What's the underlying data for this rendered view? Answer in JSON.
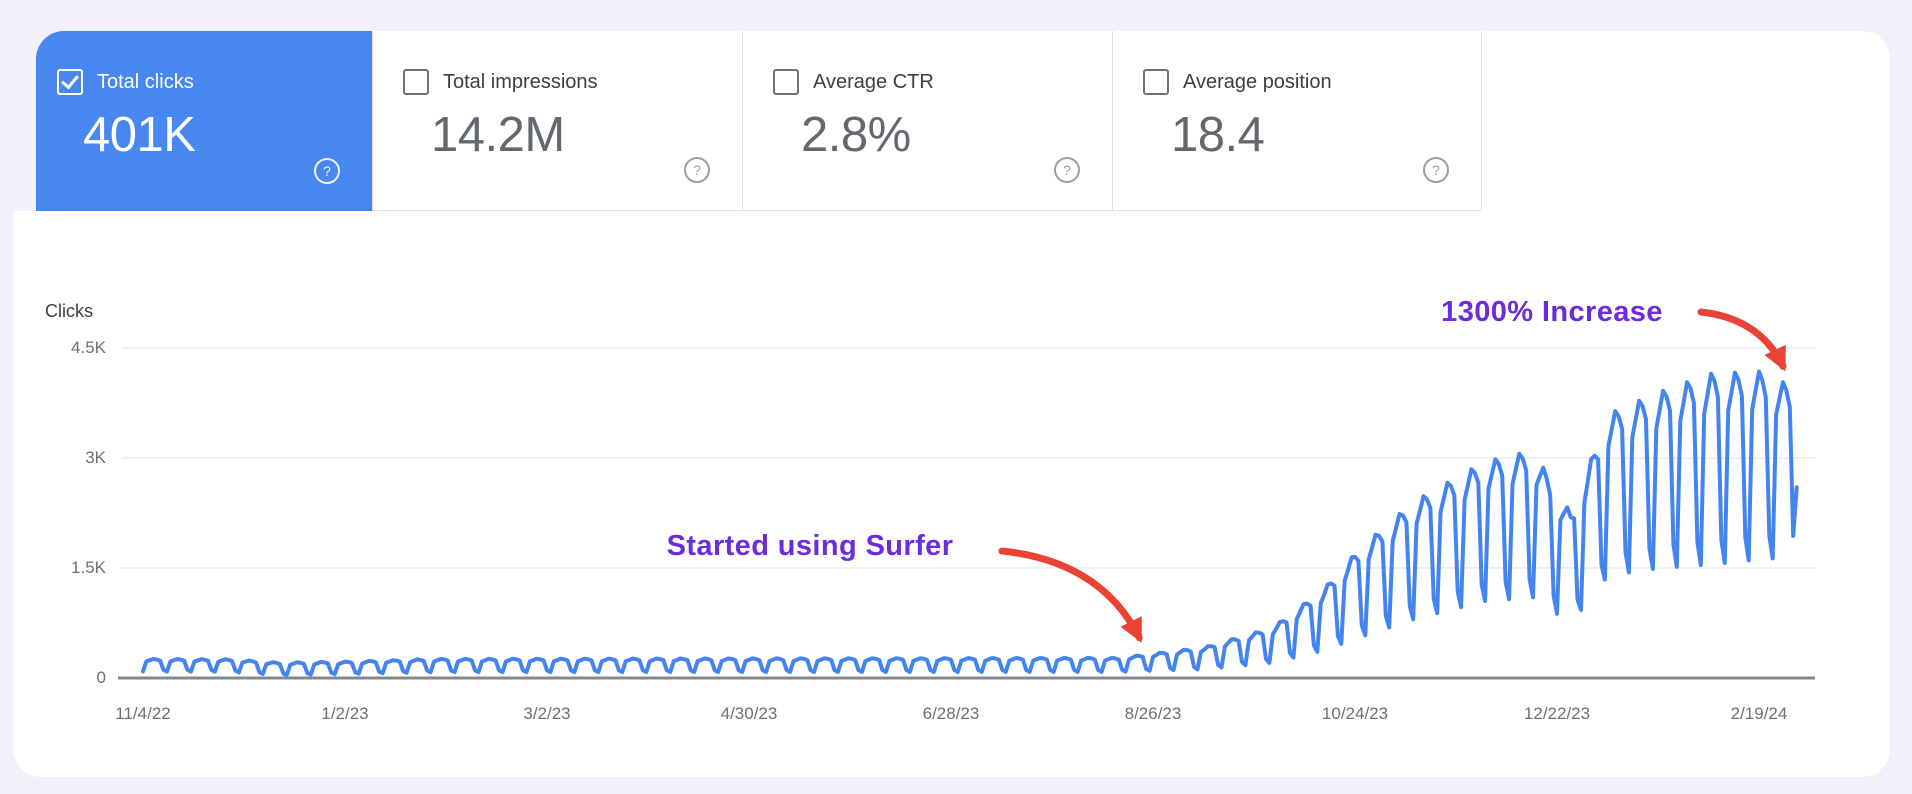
{
  "colors": {
    "background": "#f0f1fa",
    "surface": "#ffffff",
    "selected_card_blue": "#4787ef",
    "line_blue": "#4384f0",
    "grid": "#e9ebee",
    "axis": "#85898e",
    "divider": "#dee0e4",
    "annotation_text_purple": "#6d2bdb",
    "annotation_arrow_red": "#ea4335",
    "help_gray": "#9aa0a6"
  },
  "help_glyph": "?",
  "cards": [
    {
      "label": "Total clicks",
      "value": "401K",
      "checked": true,
      "selected": true
    },
    {
      "label": "Total impressions",
      "value": "14.2M",
      "checked": false,
      "selected": false
    },
    {
      "label": "Average CTR",
      "value": "2.8%",
      "checked": false,
      "selected": false
    },
    {
      "label": "Average position",
      "value": "18.4",
      "checked": false,
      "selected": false
    }
  ],
  "chart_data": {
    "type": "line",
    "series_name": "Clicks",
    "unit_label": "Clicks",
    "x_ticks": [
      "11/4/22",
      "1/2/23",
      "3/2/23",
      "4/30/23",
      "6/28/23",
      "8/26/23",
      "10/24/23",
      "12/22/23",
      "2/19/24"
    ],
    "x_tick_days": [
      0,
      59,
      118,
      177,
      236,
      295,
      354,
      413,
      472
    ],
    "y_ticks": [
      {
        "label": "4.5K",
        "value": 4500
      },
      {
        "label": "3K",
        "value": 3000
      },
      {
        "label": "1.5K",
        "value": 1500
      },
      {
        "label": "0",
        "value": 0
      }
    ],
    "ylim": [
      0,
      4500
    ],
    "grid_on": true,
    "total_days": 483,
    "daily_series_model": {
      "description": "daily clicks = mean(day) + amp(day) * weekly_pattern[(day+phase)%7], linear interpolation between envelope keyframes",
      "weekly_pattern": [
        0.8,
        1.0,
        0.92,
        0.75,
        -0.75,
        -1.0,
        0.6
      ],
      "phase": 5,
      "min_value": 28,
      "final_value": 2600,
      "envelope_keyframes": [
        {
          "day": 0,
          "mean": 175,
          "amp": 85
        },
        {
          "day": 25,
          "mean": 170,
          "amp": 85
        },
        {
          "day": 40,
          "mean": 125,
          "amp": 85
        },
        {
          "day": 60,
          "mean": 140,
          "amp": 85
        },
        {
          "day": 85,
          "mean": 170,
          "amp": 90
        },
        {
          "day": 285,
          "mean": 180,
          "amp": 95
        },
        {
          "day": 310,
          "mean": 270,
          "amp": 150
        },
        {
          "day": 330,
          "mean": 450,
          "amp": 240
        },
        {
          "day": 345,
          "mean": 800,
          "amp": 420
        },
        {
          "day": 355,
          "mean": 1150,
          "amp": 600
        },
        {
          "day": 371,
          "mean": 1600,
          "amp": 800
        },
        {
          "day": 392,
          "mean": 2000,
          "amp": 950
        },
        {
          "day": 406,
          "mean": 2100,
          "amp": 1000
        },
        {
          "day": 417,
          "mean": 1500,
          "amp": 750
        },
        {
          "day": 428,
          "mean": 2500,
          "amp": 1100
        },
        {
          "day": 443,
          "mean": 2700,
          "amp": 1200
        },
        {
          "day": 458,
          "mean": 2850,
          "amp": 1300
        },
        {
          "day": 472,
          "mean": 2900,
          "amp": 1280
        },
        {
          "day": 483,
          "mean": 2800,
          "amp": 1150
        }
      ]
    },
    "annotations": [
      {
        "text": "Started using Surfer",
        "points_to_day": 291,
        "points_to_value": 550
      },
      {
        "text": "1300% Increase",
        "points_to_day": 479,
        "points_to_value": 4250
      }
    ]
  }
}
